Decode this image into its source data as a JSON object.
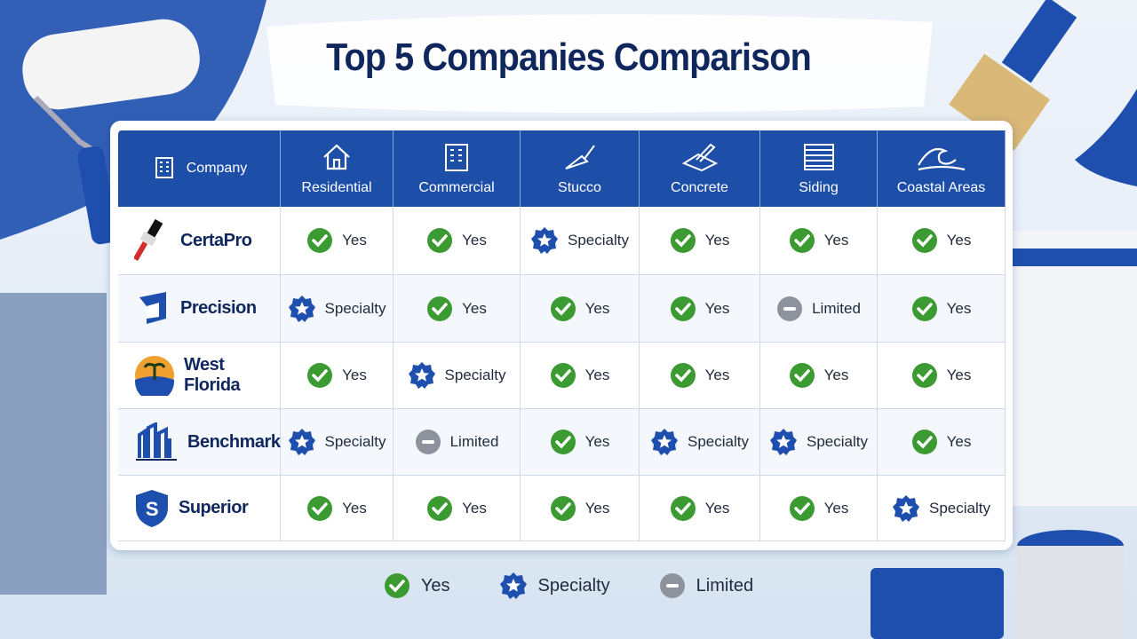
{
  "title": "Top 5 Companies Comparison",
  "table": {
    "headers": [
      "Company",
      "Residential",
      "Commercial",
      "Stucco",
      "Concrete",
      "Siding",
      "Coastal Areas"
    ],
    "rows": [
      [
        "CertaPro",
        "Yes",
        "Yes",
        "Specialty",
        "Yes",
        "Yes",
        "Yes"
      ],
      [
        "Precision",
        "Specialty",
        "Yes",
        "Yes",
        "Yes",
        "Limited",
        "Yes"
      ],
      [
        "West Florida",
        "Yes",
        "Specialty",
        "Yes",
        "Yes",
        "Yes",
        "Yes"
      ],
      [
        "Benchmark",
        "Specialty",
        "Limited",
        "Yes",
        "Specialty",
        "Specialty",
        "Yes"
      ],
      [
        "Superior",
        "Yes",
        "Yes",
        "Yes",
        "Yes",
        "Yes",
        "Specialty"
      ]
    ]
  },
  "legend": [
    "Yes",
    "Specialty",
    "Limited"
  ]
}
